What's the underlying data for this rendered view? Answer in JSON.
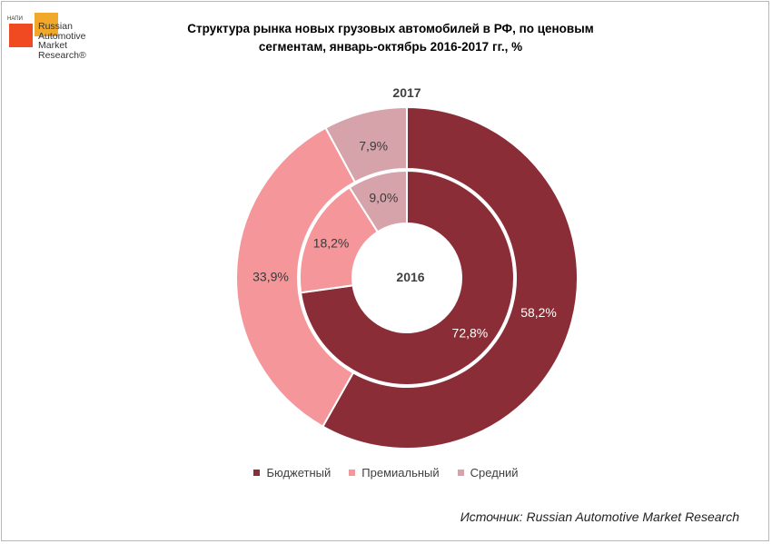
{
  "logo": {
    "tag": "НАПИ",
    "name": "Russian\nAutomotive\nMarket\nResearch®"
  },
  "title": "Структура рынка новых грузовых автомобилей в РФ, по ценовым\nсегментам, январь-октябрь 2016-2017 гг., %",
  "source": "Источник: Russian Automotive Market Research",
  "colors": {
    "budget": "#8b2d36",
    "premium": "#f4969a",
    "middle": "#d7a3aa"
  },
  "chart_data": {
    "type": "pie",
    "subtype": "nested-donut",
    "categories": [
      "Бюджетный",
      "Премиальный",
      "Средний"
    ],
    "series": [
      {
        "name": "2017",
        "ring": "outer",
        "values": [
          58.2,
          33.9,
          7.9
        ],
        "labels": [
          "58,2%",
          "33,9%",
          "7,9%"
        ]
      },
      {
        "name": "2016",
        "ring": "inner",
        "values": [
          72.8,
          18.2,
          9.0
        ],
        "labels": [
          "72,8%",
          "18,2%",
          "9,0%"
        ]
      }
    ],
    "legend_position": "bottom"
  }
}
